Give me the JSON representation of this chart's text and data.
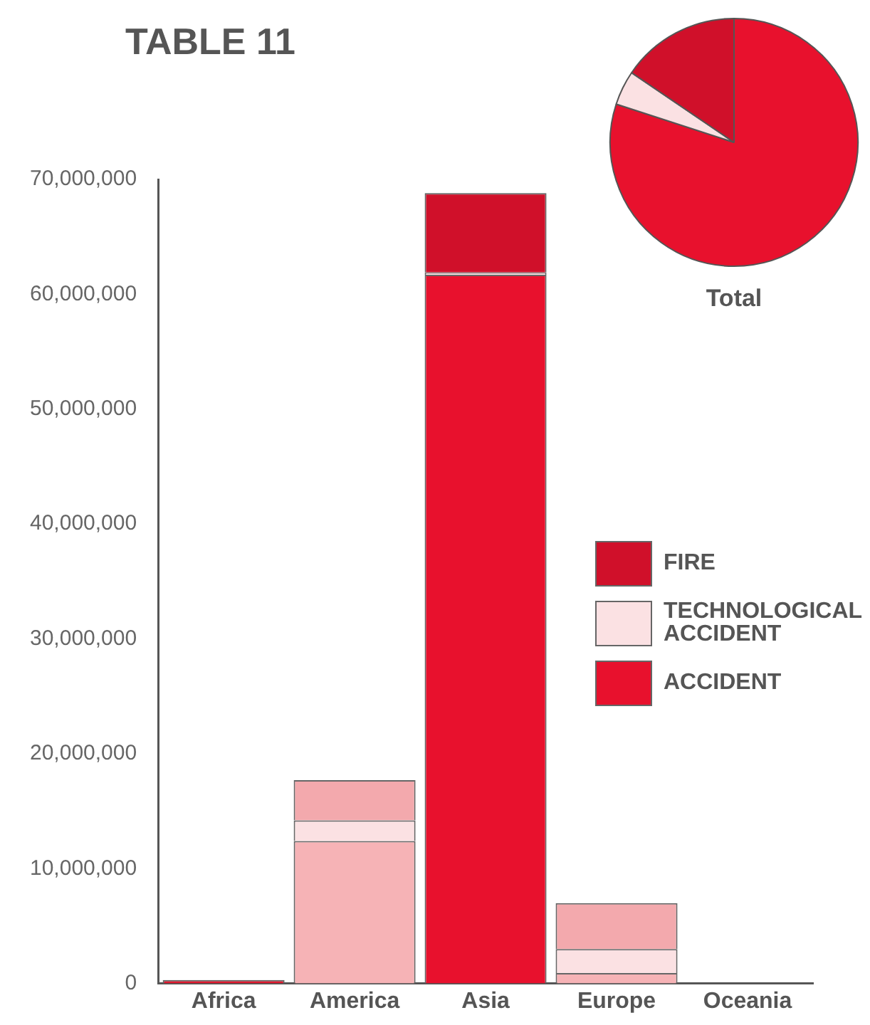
{
  "chart_data": [
    {
      "type": "bar",
      "title": "TABLE 11",
      "stacked": true,
      "legend": "right",
      "grid": false,
      "categories": [
        "Africa",
        "America",
        "Asia",
        "Europe",
        "Oceania"
      ],
      "series": [
        {
          "name": "ACCIDENT",
          "color": "#e8112d",
          "colors": [
            "#e0182e",
            "#f6b3b6",
            "#e8112d",
            "#f6b3b6",
            "#e8112d"
          ],
          "values": [
            300000,
            12400000,
            61700000,
            900000,
            0
          ]
        },
        {
          "name": "TECHNOLOGICAL ACCIDENT",
          "color": "#fbe1e3",
          "colors": [
            "#fbe1e3",
            "#fbe1e3",
            "#fbe1e3",
            "#fbe1e3",
            "#fbe1e3"
          ],
          "values": [
            0,
            1800000,
            200000,
            2100000,
            0
          ]
        },
        {
          "name": "FIRE",
          "color": "#d0102a",
          "colors": [
            "#d0102a",
            "#f3a9ad",
            "#d0102a",
            "#f3a9ad",
            "#d0102a"
          ],
          "values": [
            0,
            3500000,
            6900000,
            4000000,
            0
          ]
        }
      ],
      "ylim": [
        0,
        70000000
      ],
      "yticks": [
        0,
        {
          "value": 10000000,
          "label": "10,000,000"
        },
        {
          "value": 20000000,
          "label": "20,000,000"
        },
        {
          "value": 30000000,
          "label": "30,000,000"
        },
        {
          "value": 40000000,
          "label": "40,000,000"
        },
        {
          "value": 50000000,
          "label": "50,000,000"
        },
        {
          "value": 60000000,
          "label": "60,000,000"
        },
        {
          "value": 70000000,
          "label": "70,000,000"
        }
      ]
    },
    {
      "type": "pie",
      "title": "Total",
      "categories": [
        null,
        null,
        null
      ],
      "values": [
        80,
        4.5,
        15.5
      ],
      "colors": [
        "#e8112d",
        "#fbe1e3",
        "#d0102a"
      ]
    }
  ]
}
